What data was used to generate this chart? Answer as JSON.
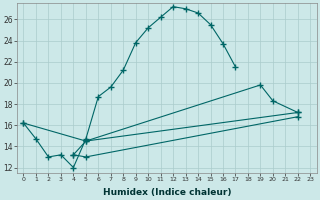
{
  "xlabel": "Humidex (Indice chaleur)",
  "bg_color": "#cce8e8",
  "grid_color": "#aacccc",
  "line_color": "#006666",
  "xlim": [
    -0.5,
    23.5
  ],
  "ylim": [
    11.5,
    27.5
  ],
  "xticks": [
    0,
    1,
    2,
    3,
    4,
    5,
    6,
    7,
    8,
    9,
    10,
    11,
    12,
    13,
    14,
    15,
    16,
    17,
    18,
    19,
    20,
    21,
    22,
    23
  ],
  "yticks": [
    12,
    14,
    16,
    18,
    20,
    22,
    24,
    26
  ],
  "series": [
    {
      "x": [
        0,
        1,
        2,
        3,
        4,
        5,
        6,
        7,
        8,
        9,
        10,
        11,
        12,
        13,
        14,
        15,
        16,
        17
      ],
      "y": [
        16.2,
        14.7,
        13.0,
        13.2,
        12.0,
        14.7,
        18.7,
        19.6,
        21.2,
        23.8,
        25.2,
        26.2,
        27.2,
        27.0,
        26.6,
        25.5,
        23.7,
        21.5
      ]
    },
    {
      "x": [
        0,
        5,
        19,
        20,
        22
      ],
      "y": [
        16.2,
        14.5,
        19.8,
        18.3,
        17.2
      ]
    },
    {
      "x": [
        4,
        5,
        22
      ],
      "y": [
        13.2,
        14.5,
        17.2
      ]
    },
    {
      "x": [
        4,
        5,
        22
      ],
      "y": [
        13.2,
        13.0,
        16.8
      ]
    }
  ]
}
